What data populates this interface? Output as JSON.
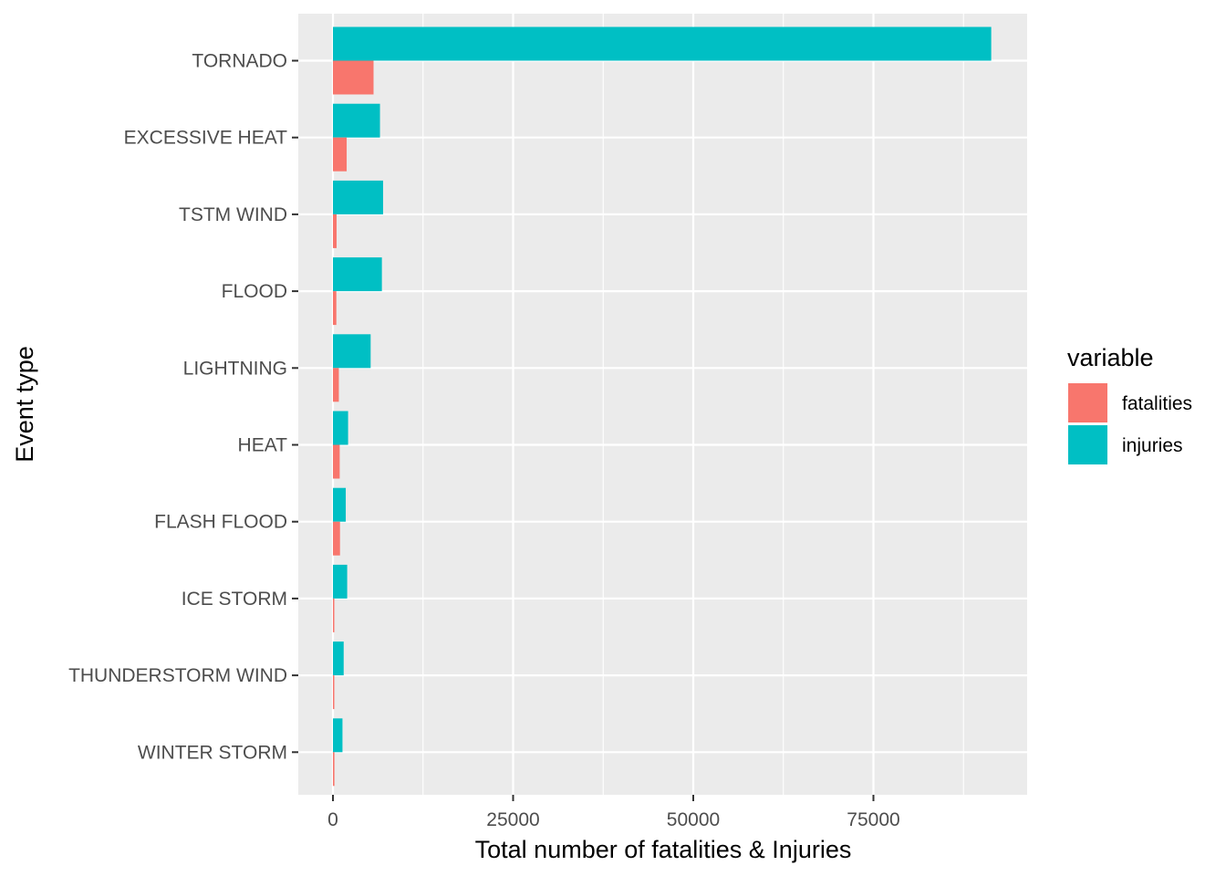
{
  "chart_data": {
    "type": "bar",
    "orientation": "horizontal",
    "xlabel": "Total number of fatalities & Injuries",
    "ylabel": "Event type",
    "xlim": [
      -10000,
      192000
    ],
    "x_ticks": [
      0,
      25000,
      50000,
      75000
    ],
    "categories": [
      "TORNADO",
      "EXCESSIVE HEAT",
      "TSTM WIND",
      "FLOOD",
      "LIGHTNING",
      "HEAT",
      "FLASH FLOOD",
      "ICE STORM",
      "THUNDERSTORM WIND",
      "WINTER STORM"
    ],
    "series": [
      {
        "name": "fatalities",
        "color": "#F8766D",
        "values": [
          5633,
          1903,
          504,
          470,
          816,
          937,
          978,
          89,
          133,
          206
        ]
      },
      {
        "name": "injuries",
        "color": "#00BFC4",
        "values": [
          91346,
          6525,
          6957,
          6789,
          5230,
          2100,
          1777,
          1975,
          1488,
          1321
        ]
      }
    ],
    "legend": {
      "title": "variable",
      "position": "right"
    },
    "grid": true,
    "panel_background": "#EBEBEB"
  }
}
